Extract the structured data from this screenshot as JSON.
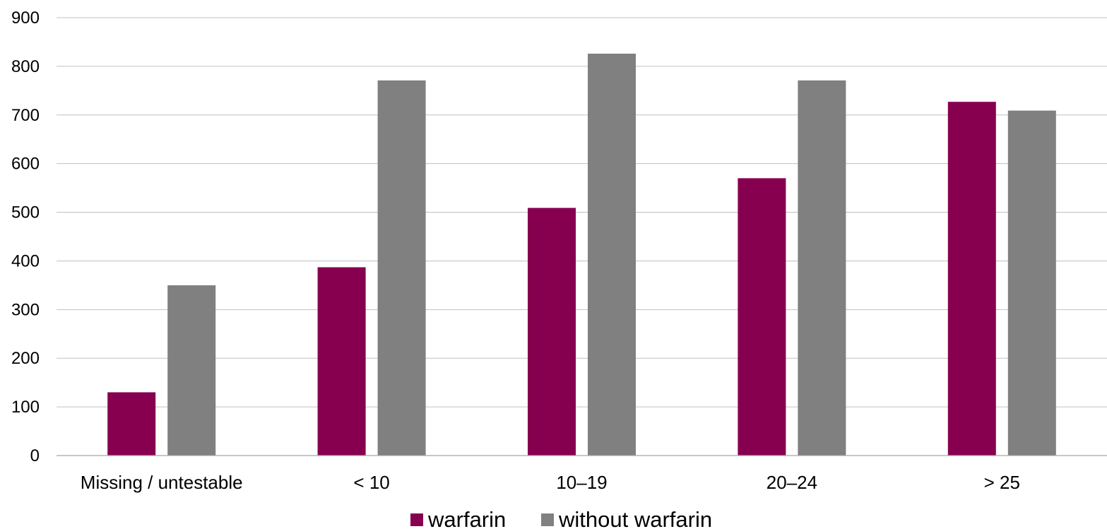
{
  "chart_data": {
    "type": "bar",
    "title": "",
    "xlabel": "",
    "ylabel": "",
    "categories": [
      "Missing / untestable",
      "< 10",
      "10–19",
      "20–24",
      "> 25"
    ],
    "series": [
      {
        "name": "warfarin",
        "color": "#870050",
        "values": [
          130,
          387,
          509,
          570,
          727
        ]
      },
      {
        "name": "without warfarin",
        "color": "#808080",
        "values": [
          350,
          771,
          826,
          771,
          709
        ]
      }
    ],
    "ylim": [
      0,
      900
    ],
    "yticks": [
      "0",
      "100",
      "200",
      "300",
      "400",
      "500",
      "600",
      "700",
      "800",
      "900"
    ],
    "grid": true,
    "legend_position": "bottom"
  }
}
